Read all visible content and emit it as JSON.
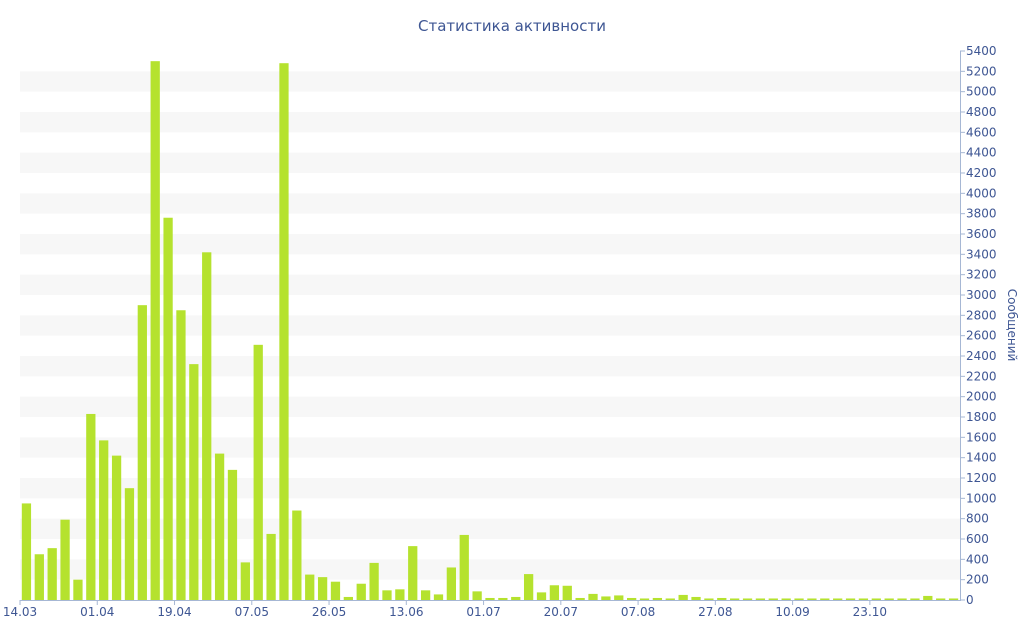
{
  "chart_data": {
    "type": "bar",
    "title": "Статистика активности",
    "xlabel": "",
    "ylabel": "Сообщений",
    "y_axis_side": "right",
    "ylim": [
      0,
      5400
    ],
    "y_ticks": [
      0,
      200,
      400,
      600,
      800,
      1000,
      1200,
      1400,
      1600,
      1800,
      2000,
      2200,
      2400,
      2600,
      2800,
      3000,
      3200,
      3400,
      3600,
      3800,
      4000,
      4200,
      4400,
      4600,
      4800,
      5000,
      5200,
      5400
    ],
    "x_tick_labels": [
      {
        "label": "14.03",
        "index": 0
      },
      {
        "label": "01.04",
        "index": 6
      },
      {
        "label": "19.04",
        "index": 12
      },
      {
        "label": "07.05",
        "index": 18
      },
      {
        "label": "26.05",
        "index": 24
      },
      {
        "label": "13.06",
        "index": 30
      },
      {
        "label": "01.07",
        "index": 36
      },
      {
        "label": "20.07",
        "index": 42
      },
      {
        "label": "07.08",
        "index": 48
      },
      {
        "label": "27.08",
        "index": 54
      },
      {
        "label": "10.09",
        "index": 60
      },
      {
        "label": "23.10",
        "index": 66
      }
    ],
    "series": [
      {
        "values": [
          950,
          450,
          510,
          790,
          200,
          1830,
          1570,
          1420,
          1100,
          2900,
          5300,
          3760,
          2850,
          2320,
          3420,
          1440,
          1280,
          370,
          2510,
          650,
          5280,
          880,
          250,
          225,
          180,
          30,
          160,
          365,
          95,
          105,
          530,
          95,
          55,
          320,
          640,
          85,
          20,
          20,
          30,
          255,
          75,
          145,
          140,
          20,
          60,
          35,
          45,
          20,
          15,
          20,
          15,
          50,
          30,
          15,
          20,
          15,
          15,
          15,
          15,
          15,
          15,
          15,
          15,
          15,
          15,
          15,
          15,
          15,
          15,
          15,
          40,
          15,
          15
        ]
      }
    ],
    "grid": "horizontal alternating bands",
    "legend": "none",
    "colors": {
      "bar": "#b5e22e",
      "text": "#3e5693",
      "band": "#f7f7f7",
      "axis": "#a6b7d4"
    }
  }
}
